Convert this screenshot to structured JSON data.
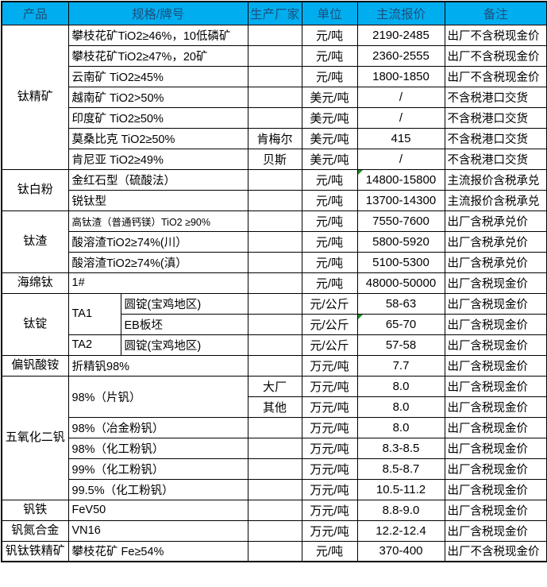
{
  "colors": {
    "header_bg": "#00AEEF",
    "header_text": "#1F4E79",
    "border": "#000000",
    "marker": "#1E8C1E"
  },
  "table": {
    "headers": [
      {
        "key": "product",
        "label": "产品",
        "cs": 1
      },
      {
        "key": "spec",
        "label": "规格/牌号",
        "cs": 2
      },
      {
        "key": "maker",
        "label": "生产厂家",
        "cs": 1
      },
      {
        "key": "unit",
        "label": "单位",
        "cs": 1
      },
      {
        "key": "price",
        "label": "主流报价",
        "cs": 1
      },
      {
        "key": "note",
        "label": "备注",
        "cs": 1
      }
    ],
    "rows": [
      [
        {
          "c": "product",
          "t": "钛精矿",
          "rs": 7
        },
        {
          "c": "spec",
          "t": "攀枝花矿TiO2≥46%，10低磷矿",
          "cs": 2
        },
        {
          "c": "maker",
          "t": ""
        },
        {
          "c": "unit",
          "t": "元/吨"
        },
        {
          "c": "price",
          "t": "2190-2485"
        },
        {
          "c": "note",
          "t": "出厂不含税现金价"
        }
      ],
      [
        {
          "c": "spec",
          "t": "攀枝花矿TiO2≥47%，20矿",
          "cs": 2
        },
        {
          "c": "maker",
          "t": ""
        },
        {
          "c": "unit",
          "t": "元/吨"
        },
        {
          "c": "price",
          "t": "2360-2555"
        },
        {
          "c": "note",
          "t": "出厂不含税现金价"
        }
      ],
      [
        {
          "c": "spec",
          "t": "云南矿 TiO2≥45%",
          "cs": 2
        },
        {
          "c": "maker",
          "t": ""
        },
        {
          "c": "unit",
          "t": "元/吨"
        },
        {
          "c": "price",
          "t": "1800-1850"
        },
        {
          "c": "note",
          "t": "出厂不含税现金价"
        }
      ],
      [
        {
          "c": "spec",
          "t": "越南矿 TiO2>50%",
          "cs": 2
        },
        {
          "c": "maker",
          "t": ""
        },
        {
          "c": "unit",
          "t": "美元/吨"
        },
        {
          "c": "price",
          "t": "/"
        },
        {
          "c": "note",
          "t": "不含税港口交货"
        }
      ],
      [
        {
          "c": "spec",
          "t": "印度矿 TiO2≥50%",
          "cs": 2
        },
        {
          "c": "maker",
          "t": ""
        },
        {
          "c": "unit",
          "t": "美元/吨"
        },
        {
          "c": "price",
          "t": "/"
        },
        {
          "c": "note",
          "t": "不含税港口交货"
        }
      ],
      [
        {
          "c": "spec",
          "t": "莫桑比克 TiO2≥50%",
          "cs": 2
        },
        {
          "c": "maker",
          "t": "肯梅尔"
        },
        {
          "c": "unit",
          "t": "美元/吨"
        },
        {
          "c": "price",
          "t": "415"
        },
        {
          "c": "note",
          "t": "不含税港口交货"
        }
      ],
      [
        {
          "c": "spec",
          "t": "肯尼亚 TiO2≥49%",
          "cs": 2
        },
        {
          "c": "maker",
          "t": "贝斯"
        },
        {
          "c": "unit",
          "t": "美元/吨"
        },
        {
          "c": "price",
          "t": "/"
        },
        {
          "c": "note",
          "t": "不含税港口交货"
        }
      ],
      [
        {
          "c": "product",
          "t": "钛白粉",
          "rs": 2
        },
        {
          "c": "spec",
          "t": "金红石型（硫酸法）",
          "cs": 2
        },
        {
          "c": "maker",
          "t": ""
        },
        {
          "c": "unit",
          "t": "元/吨"
        },
        {
          "c": "price",
          "t": "14800-15800",
          "m": true
        },
        {
          "c": "note",
          "t": "主流报价含税承兑"
        }
      ],
      [
        {
          "c": "spec",
          "t": "锐钛型",
          "cs": 2
        },
        {
          "c": "maker",
          "t": ""
        },
        {
          "c": "unit",
          "t": "元/吨"
        },
        {
          "c": "price",
          "t": "13700-14300"
        },
        {
          "c": "note",
          "t": "主流报价含税承兑"
        }
      ],
      [
        {
          "c": "product",
          "t": "钛渣",
          "rs": 3
        },
        {
          "c": "spec",
          "t": "高钛渣（普通钙镁）TiO2 ≥90%",
          "cs": 2,
          "sm": true
        },
        {
          "c": "maker",
          "t": ""
        },
        {
          "c": "unit",
          "t": "元/吨"
        },
        {
          "c": "price",
          "t": "7550-7600"
        },
        {
          "c": "note",
          "t": "出厂含税承兑价"
        }
      ],
      [
        {
          "c": "spec",
          "t": "酸溶渣TiO2≥74%(川）",
          "cs": 2
        },
        {
          "c": "maker",
          "t": ""
        },
        {
          "c": "unit",
          "t": "元/吨"
        },
        {
          "c": "price",
          "t": "5800-5920"
        },
        {
          "c": "note",
          "t": "出厂含税承兑价"
        }
      ],
      [
        {
          "c": "spec",
          "t": "酸溶渣TiO2≥74%(滇）",
          "cs": 2
        },
        {
          "c": "maker",
          "t": ""
        },
        {
          "c": "unit",
          "t": "元/吨"
        },
        {
          "c": "price",
          "t": "5100-5300"
        },
        {
          "c": "note",
          "t": "出厂含税承兑价"
        }
      ],
      [
        {
          "c": "product",
          "t": "海绵钛"
        },
        {
          "c": "spec",
          "t": "1#",
          "cs": 2
        },
        {
          "c": "maker",
          "t": ""
        },
        {
          "c": "unit",
          "t": "元/吨"
        },
        {
          "c": "price",
          "t": "48000-50000"
        },
        {
          "c": "note",
          "t": "出厂含税现金价"
        }
      ],
      [
        {
          "c": "product",
          "t": "钛锭",
          "rs": 3
        },
        {
          "c": "specA",
          "t": "TA1",
          "rs": 2
        },
        {
          "c": "specB",
          "t": "圆锭(宝鸡地区)"
        },
        {
          "c": "maker",
          "t": ""
        },
        {
          "c": "unit",
          "t": "元/公斤"
        },
        {
          "c": "price",
          "t": "58-63"
        },
        {
          "c": "note",
          "t": "出厂含税现金价"
        }
      ],
      [
        {
          "c": "specB",
          "t": "EB板坯"
        },
        {
          "c": "maker",
          "t": ""
        },
        {
          "c": "unit",
          "t": "元/公斤"
        },
        {
          "c": "price",
          "t": "65-70",
          "m": true
        },
        {
          "c": "note",
          "t": "出厂含税现金价"
        }
      ],
      [
        {
          "c": "specA",
          "t": "TA2"
        },
        {
          "c": "specB",
          "t": "圆锭(宝鸡地区)"
        },
        {
          "c": "maker",
          "t": ""
        },
        {
          "c": "unit",
          "t": "元/公斤"
        },
        {
          "c": "price",
          "t": "57-58"
        },
        {
          "c": "note",
          "t": "出厂含税现金价"
        }
      ],
      [
        {
          "c": "product",
          "t": "偏钒酸铵"
        },
        {
          "c": "spec",
          "t": "折精钒98%",
          "cs": 2
        },
        {
          "c": "maker",
          "t": ""
        },
        {
          "c": "unit",
          "t": "万元/吨"
        },
        {
          "c": "price",
          "t": "7.7"
        },
        {
          "c": "note",
          "t": "出厂含税现金价"
        }
      ],
      [
        {
          "c": "product",
          "t": "五氧化二钒",
          "rs": 6
        },
        {
          "c": "spec",
          "t": "98%（片钒）",
          "cs": 2,
          "rs": 2
        },
        {
          "c": "maker",
          "t": "大厂"
        },
        {
          "c": "unit",
          "t": "万元/吨"
        },
        {
          "c": "price",
          "t": "8.0"
        },
        {
          "c": "note",
          "t": "出厂含税现金价"
        }
      ],
      [
        {
          "c": "maker",
          "t": "其他"
        },
        {
          "c": "unit",
          "t": "万元/吨"
        },
        {
          "c": "price",
          "t": "8.0"
        },
        {
          "c": "note",
          "t": "出厂含税现金价"
        }
      ],
      [
        {
          "c": "spec",
          "t": "98%（冶金粉钒）",
          "cs": 2
        },
        {
          "c": "maker",
          "t": ""
        },
        {
          "c": "unit",
          "t": "万元/吨"
        },
        {
          "c": "price",
          "t": "8.0"
        },
        {
          "c": "note",
          "t": "出厂含税现金价"
        }
      ],
      [
        {
          "c": "spec",
          "t": "98%（化工粉钒）",
          "cs": 2
        },
        {
          "c": "maker",
          "t": ""
        },
        {
          "c": "unit",
          "t": "万元/吨"
        },
        {
          "c": "price",
          "t": "8.3-8.5"
        },
        {
          "c": "note",
          "t": "出厂含税现金价"
        }
      ],
      [
        {
          "c": "spec",
          "t": "99%（化工粉钒）",
          "cs": 2
        },
        {
          "c": "maker",
          "t": ""
        },
        {
          "c": "unit",
          "t": "万元/吨"
        },
        {
          "c": "price",
          "t": "8.5-8.7"
        },
        {
          "c": "note",
          "t": "出厂含税现金价"
        }
      ],
      [
        {
          "c": "spec",
          "t": "99.5%（化工粉钒）",
          "cs": 2
        },
        {
          "c": "maker",
          "t": ""
        },
        {
          "c": "unit",
          "t": "万元/吨"
        },
        {
          "c": "price",
          "t": "10.5-11.2"
        },
        {
          "c": "note",
          "t": "出厂含税现金价"
        }
      ],
      [
        {
          "c": "product",
          "t": "钒铁"
        },
        {
          "c": "spec",
          "t": "FeV50",
          "cs": 2
        },
        {
          "c": "maker",
          "t": ""
        },
        {
          "c": "unit",
          "t": "万元/吨"
        },
        {
          "c": "price",
          "t": "8.8-9.0"
        },
        {
          "c": "note",
          "t": "出厂含税现金价"
        }
      ],
      [
        {
          "c": "product",
          "t": "钒氮合金"
        },
        {
          "c": "spec",
          "t": "VN16",
          "cs": 2
        },
        {
          "c": "maker",
          "t": ""
        },
        {
          "c": "unit",
          "t": "万元/吨"
        },
        {
          "c": "price",
          "t": "12.2-12.4"
        },
        {
          "c": "note",
          "t": "出厂含税现金价"
        }
      ],
      [
        {
          "c": "product",
          "t": "钒钛铁精矿"
        },
        {
          "c": "spec",
          "t": "攀枝花矿 Fe≥54%",
          "cs": 2
        },
        {
          "c": "maker",
          "t": ""
        },
        {
          "c": "unit",
          "t": "元/吨"
        },
        {
          "c": "price",
          "t": "370-400"
        },
        {
          "c": "note",
          "t": "出厂不含税现金价"
        }
      ]
    ]
  }
}
